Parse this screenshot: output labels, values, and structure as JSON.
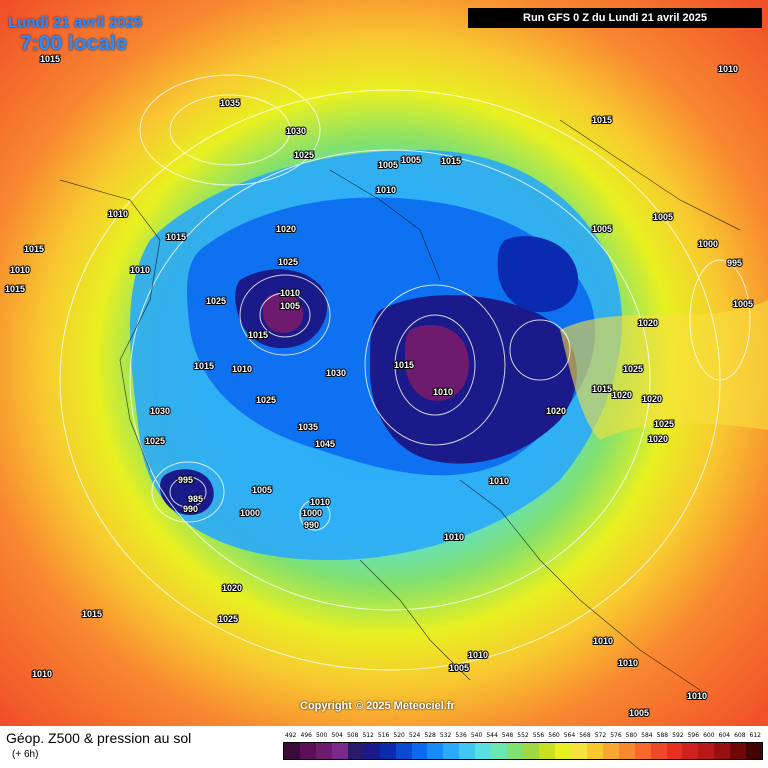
{
  "header": {
    "date": "Lundi 21 avril 2025",
    "time": "7:00 locale",
    "run": "Run GFS 0 Z du Lundi 21 avril 2025"
  },
  "copyright": "Copyright © 2025 Meteociel.fr",
  "footer": {
    "title": "Géop. Z500 & pression au sol",
    "step": "(+ 6h)"
  },
  "legend": {
    "ticks": [
      "492",
      "496",
      "500",
      "504",
      "508",
      "512",
      "516",
      "520",
      "524",
      "528",
      "532",
      "536",
      "540",
      "544",
      "548",
      "552",
      "556",
      "560",
      "564",
      "568",
      "572",
      "576",
      "580",
      "584",
      "588",
      "592",
      "596",
      "600",
      "604",
      "608",
      "612"
    ],
    "colors": [
      "#3b0a3b",
      "#5a0f5a",
      "#6e1a6e",
      "#7a2a8a",
      "#2a1a6a",
      "#1a1a8a",
      "#0a2ab0",
      "#0a4ad0",
      "#0a6af0",
      "#1a8af8",
      "#2aaaf8",
      "#40c8f0",
      "#5ae0e0",
      "#6ae8b0",
      "#80e070",
      "#a0d840",
      "#c8e020",
      "#e8f020",
      "#f8e040",
      "#f8c830",
      "#f8a830",
      "#f88830",
      "#f86828",
      "#f04828",
      "#e83020",
      "#d02020",
      "#b81818",
      "#981010",
      "#700808",
      "#400404"
    ]
  },
  "pressure_labels": [
    "1015",
    "1035",
    "1030",
    "1025",
    "1010",
    "1005",
    "1015",
    "1010",
    "1010",
    "1015",
    "1005",
    "1010",
    "1015",
    "1010",
    "1015",
    "1020",
    "1025",
    "1025",
    "1030",
    "1010",
    "1005",
    "1015",
    "1015",
    "1010",
    "1015",
    "1035",
    "1045",
    "1025",
    "1030",
    "1025",
    "995",
    "985",
    "990",
    "1005",
    "1000",
    "1010",
    "1000",
    "990",
    "1020",
    "1025",
    "1015",
    "1010",
    "1010",
    "1015",
    "1020",
    "1015",
    "1020",
    "1000",
    "995",
    "1005",
    "1005",
    "1020",
    "1025",
    "1020",
    "1025",
    "1020",
    "1010",
    "1005",
    "1010",
    "1010",
    "1010",
    "1005",
    "1005",
    "1010",
    "1010"
  ]
}
